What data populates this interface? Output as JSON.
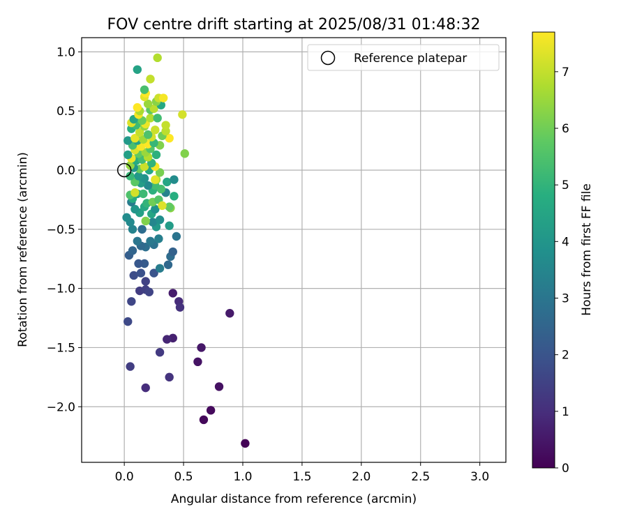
{
  "chart_data": {
    "type": "scatter",
    "title": "FOV centre drift starting at 2025/08/31 01:48:32",
    "xlabel": "Angular distance from reference (arcmin)",
    "ylabel": "Rotation from reference (arcmin)",
    "xlim": [
      -0.36,
      3.22
    ],
    "ylim": [
      -2.47,
      1.12
    ],
    "xticks": [
      "0.0",
      "0.5",
      "1.0",
      "1.5",
      "2.0",
      "2.5",
      "3.0"
    ],
    "yticks": [
      "−2.0",
      "−1.5",
      "−1.0",
      "−0.5",
      "0.0",
      "0.5",
      "1.0"
    ],
    "grid": true,
    "legend": {
      "placement": "top-right",
      "entries": [
        "Reference platepar"
      ]
    },
    "reference_point": {
      "x": 0.0,
      "y": 0.0
    },
    "colorbar": {
      "label": "Hours from first FF file",
      "range": [
        0,
        7.7
      ],
      "ticks": [
        "0",
        "1",
        "2",
        "3",
        "4",
        "5",
        "6",
        "7"
      ],
      "colormap": "viridis"
    },
    "points": [
      {
        "x": 1.02,
        "y": -2.31,
        "h": 0.05
      },
      {
        "x": 0.67,
        "y": -2.11,
        "h": 0.15
      },
      {
        "x": 0.73,
        "y": -2.03,
        "h": 0.2
      },
      {
        "x": 0.8,
        "y": -1.83,
        "h": 0.35
      },
      {
        "x": 0.62,
        "y": -1.62,
        "h": 0.4
      },
      {
        "x": 0.65,
        "y": -1.5,
        "h": 0.5
      },
      {
        "x": 0.89,
        "y": -1.21,
        "h": 0.55
      },
      {
        "x": 0.41,
        "y": -1.42,
        "h": 0.7
      },
      {
        "x": 0.36,
        "y": -1.43,
        "h": 0.8
      },
      {
        "x": 0.41,
        "y": -1.04,
        "h": 0.6
      },
      {
        "x": 0.46,
        "y": -1.11,
        "h": 0.95
      },
      {
        "x": 0.47,
        "y": -1.16,
        "h": 1.1
      },
      {
        "x": 0.18,
        "y": -1.84,
        "h": 1.0
      },
      {
        "x": 0.38,
        "y": -1.75,
        "h": 1.15
      },
      {
        "x": 0.3,
        "y": -1.54,
        "h": 1.3
      },
      {
        "x": 0.05,
        "y": -1.66,
        "h": 1.4
      },
      {
        "x": 0.03,
        "y": -1.28,
        "h": 1.7
      },
      {
        "x": 0.06,
        "y": -1.11,
        "h": 1.6
      },
      {
        "x": 0.13,
        "y": -1.02,
        "h": 1.35
      },
      {
        "x": 0.18,
        "y": -1.01,
        "h": 1.45
      },
      {
        "x": 0.21,
        "y": -1.03,
        "h": 1.55
      },
      {
        "x": 0.18,
        "y": -0.94,
        "h": 1.5
      },
      {
        "x": 0.08,
        "y": -0.89,
        "h": 1.8
      },
      {
        "x": 0.14,
        "y": -0.87,
        "h": 1.9
      },
      {
        "x": 0.25,
        "y": -0.87,
        "h": 2.0
      },
      {
        "x": 0.17,
        "y": -0.79,
        "h": 2.2
      },
      {
        "x": 0.12,
        "y": -0.79,
        "h": 2.1
      },
      {
        "x": 0.3,
        "y": -0.83,
        "h": 3.2
      },
      {
        "x": 0.37,
        "y": -0.8,
        "h": 2.6
      },
      {
        "x": 0.39,
        "y": -0.73,
        "h": 2.7
      },
      {
        "x": 0.41,
        "y": -0.69,
        "h": 2.4
      },
      {
        "x": 0.04,
        "y": -0.72,
        "h": 2.3
      },
      {
        "x": 0.07,
        "y": -0.68,
        "h": 2.5
      },
      {
        "x": 0.18,
        "y": -0.65,
        "h": 2.8
      },
      {
        "x": 0.14,
        "y": -0.64,
        "h": 2.65
      },
      {
        "x": 0.25,
        "y": -0.63,
        "h": 2.9
      },
      {
        "x": 0.11,
        "y": -0.6,
        "h": 3.0
      },
      {
        "x": 0.22,
        "y": -0.6,
        "h": 3.1
      },
      {
        "x": 0.29,
        "y": -0.58,
        "h": 3.3
      },
      {
        "x": 0.44,
        "y": -0.56,
        "h": 2.95
      },
      {
        "x": 0.15,
        "y": -0.5,
        "h": 2.75
      },
      {
        "x": 0.07,
        "y": -0.5,
        "h": 3.4
      },
      {
        "x": 0.27,
        "y": -0.48,
        "h": 4.1
      },
      {
        "x": 0.38,
        "y": -0.47,
        "h": 4.2
      },
      {
        "x": 0.24,
        "y": -0.44,
        "h": 3.5
      },
      {
        "x": 0.05,
        "y": -0.44,
        "h": 3.6
      },
      {
        "x": 0.02,
        "y": -0.4,
        "h": 3.7
      },
      {
        "x": 0.3,
        "y": -0.42,
        "h": 3.8
      },
      {
        "x": 0.18,
        "y": -0.43,
        "h": 6.2
      },
      {
        "x": 0.13,
        "y": -0.36,
        "h": 4.3
      },
      {
        "x": 0.09,
        "y": -0.33,
        "h": 4.0
      },
      {
        "x": 0.23,
        "y": -0.37,
        "h": 4.5
      },
      {
        "x": 0.26,
        "y": -0.33,
        "h": 3.9
      },
      {
        "x": 0.17,
        "y": -0.31,
        "h": 4.6
      },
      {
        "x": 0.06,
        "y": -0.27,
        "h": 3.2
      },
      {
        "x": 0.19,
        "y": -0.28,
        "h": 5.0
      },
      {
        "x": 0.24,
        "y": -0.27,
        "h": 6.0
      },
      {
        "x": 0.29,
        "y": -0.25,
        "h": 5.6
      },
      {
        "x": 0.39,
        "y": -0.32,
        "h": 6.3
      },
      {
        "x": 0.38,
        "y": -0.31,
        "h": 5.8
      },
      {
        "x": 0.32,
        "y": -0.3,
        "h": 7.3
      },
      {
        "x": 0.07,
        "y": -0.24,
        "h": 4.7
      },
      {
        "x": 0.05,
        "y": -0.21,
        "h": 5.5
      },
      {
        "x": 0.11,
        "y": -0.2,
        "h": 4.4
      },
      {
        "x": 0.09,
        "y": -0.19,
        "h": 7.2
      },
      {
        "x": 0.16,
        "y": -0.2,
        "h": 5.2
      },
      {
        "x": 0.42,
        "y": -0.22,
        "h": 4.8
      },
      {
        "x": 0.35,
        "y": -0.19,
        "h": 3.4
      },
      {
        "x": 0.31,
        "y": -0.16,
        "h": 5.4
      },
      {
        "x": 0.24,
        "y": -0.17,
        "h": 4.9
      },
      {
        "x": 0.26,
        "y": -0.13,
        "h": 5.3
      },
      {
        "x": 0.2,
        "y": -0.13,
        "h": 3.6
      },
      {
        "x": 0.14,
        "y": -0.11,
        "h": 4.2
      },
      {
        "x": 0.09,
        "y": -0.1,
        "h": 5.7
      },
      {
        "x": 0.36,
        "y": -0.1,
        "h": 4.5
      },
      {
        "x": 0.42,
        "y": -0.08,
        "h": 3.7
      },
      {
        "x": 0.27,
        "y": -0.08,
        "h": 6.6
      },
      {
        "x": 0.17,
        "y": -0.07,
        "h": 3.9
      },
      {
        "x": 0.05,
        "y": -0.05,
        "h": 5.1
      },
      {
        "x": 0.12,
        "y": -0.05,
        "h": 4.1
      },
      {
        "x": 0.26,
        "y": -0.08,
        "h": 7.4
      },
      {
        "x": 0.3,
        "y": -0.02,
        "h": 6.1
      },
      {
        "x": 0.21,
        "y": 0.0,
        "h": 4.6
      },
      {
        "x": 0.13,
        "y": 0.01,
        "h": 5.9
      },
      {
        "x": 0.08,
        "y": 0.02,
        "h": 4.0
      },
      {
        "x": 0.05,
        "y": 0.04,
        "h": 6.4
      },
      {
        "x": 0.17,
        "y": 0.03,
        "h": 7.1
      },
      {
        "x": 0.26,
        "y": 0.03,
        "h": 7.6
      },
      {
        "x": 0.23,
        "y": 0.06,
        "h": 5.0
      },
      {
        "x": 0.1,
        "y": 0.08,
        "h": 4.7
      },
      {
        "x": 0.15,
        "y": 0.09,
        "h": 5.3
      },
      {
        "x": 0.06,
        "y": 0.1,
        "h": 7.5
      },
      {
        "x": 0.2,
        "y": 0.11,
        "h": 6.8
      },
      {
        "x": 0.03,
        "y": 0.13,
        "h": 4.3
      },
      {
        "x": 0.12,
        "y": 0.14,
        "h": 5.8
      },
      {
        "x": 0.27,
        "y": 0.13,
        "h": 4.9
      },
      {
        "x": 0.18,
        "y": 0.15,
        "h": 6.5
      },
      {
        "x": 0.09,
        "y": 0.17,
        "h": 7.3
      },
      {
        "x": 0.22,
        "y": 0.18,
        "h": 5.6
      },
      {
        "x": 0.14,
        "y": 0.2,
        "h": 7.6
      },
      {
        "x": 0.3,
        "y": 0.21,
        "h": 6.2
      },
      {
        "x": 0.07,
        "y": 0.21,
        "h": 5.4
      },
      {
        "x": 0.2,
        "y": 0.22,
        "h": 7.7
      },
      {
        "x": 0.25,
        "y": 0.23,
        "h": 5.1
      },
      {
        "x": 0.11,
        "y": 0.25,
        "h": 4.4
      },
      {
        "x": 0.03,
        "y": 0.25,
        "h": 4.1
      },
      {
        "x": 0.16,
        "y": 0.26,
        "h": 6.6
      },
      {
        "x": 0.09,
        "y": 0.27,
        "h": 7.4
      },
      {
        "x": 0.38,
        "y": 0.27,
        "h": 7.7
      },
      {
        "x": 0.23,
        "y": 0.28,
        "h": 7.2
      },
      {
        "x": 0.32,
        "y": 0.29,
        "h": 6.0
      },
      {
        "x": 0.2,
        "y": 0.3,
        "h": 5.5
      },
      {
        "x": 0.13,
        "y": 0.32,
        "h": 7.0
      },
      {
        "x": 0.26,
        "y": 0.34,
        "h": 7.1
      },
      {
        "x": 0.35,
        "y": 0.33,
        "h": 6.9
      },
      {
        "x": 0.06,
        "y": 0.35,
        "h": 4.8
      },
      {
        "x": 0.17,
        "y": 0.37,
        "h": 6.4
      },
      {
        "x": 0.35,
        "y": 0.38,
        "h": 7.0
      },
      {
        "x": 0.1,
        "y": 0.38,
        "h": 5.2
      },
      {
        "x": 0.18,
        "y": 0.39,
        "h": 7.5
      },
      {
        "x": 0.06,
        "y": 0.4,
        "h": 7.3
      },
      {
        "x": 0.15,
        "y": 0.42,
        "h": 5.9
      },
      {
        "x": 0.08,
        "y": 0.43,
        "h": 4.5
      },
      {
        "x": 0.22,
        "y": 0.44,
        "h": 6.8
      },
      {
        "x": 0.28,
        "y": 0.44,
        "h": 5.3
      },
      {
        "x": 0.12,
        "y": 0.47,
        "h": 7.6
      },
      {
        "x": 0.49,
        "y": 0.47,
        "h": 7.2
      },
      {
        "x": 0.13,
        "y": 0.5,
        "h": 6.7
      },
      {
        "x": 0.22,
        "y": 0.51,
        "h": 5.7
      },
      {
        "x": 0.25,
        "y": 0.52,
        "h": 6.9
      },
      {
        "x": 0.11,
        "y": 0.53,
        "h": 7.7
      },
      {
        "x": 0.31,
        "y": 0.55,
        "h": 4.6
      },
      {
        "x": 0.2,
        "y": 0.56,
        "h": 6.5
      },
      {
        "x": 0.27,
        "y": 0.58,
        "h": 6.3
      },
      {
        "x": 0.29,
        "y": 0.61,
        "h": 7.1
      },
      {
        "x": 0.33,
        "y": 0.61,
        "h": 7.6
      },
      {
        "x": 0.17,
        "y": 0.62,
        "h": 7.4
      },
      {
        "x": 0.18,
        "y": 0.65,
        "h": 7.7
      },
      {
        "x": 0.17,
        "y": 0.68,
        "h": 5.4
      },
      {
        "x": 0.22,
        "y": 0.77,
        "h": 7.0
      },
      {
        "x": 0.11,
        "y": 0.85,
        "h": 4.4
      },
      {
        "x": 0.28,
        "y": 0.95,
        "h": 6.8
      },
      {
        "x": 0.51,
        "y": 0.14,
        "h": 6.2
      }
    ]
  }
}
